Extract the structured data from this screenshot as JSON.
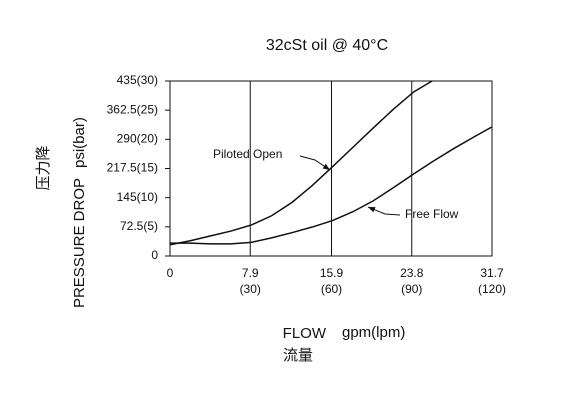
{
  "chart_data": {
    "type": "line",
    "title": "32cSt oil @ 40°C",
    "x_label": "FLOW",
    "x_unit": "gpm(lpm)",
    "x_label_cn": "流量",
    "y_label": "PRESSURE DROP",
    "y_unit": "psi(bar)",
    "y_label_cn": "压力降",
    "xlim": [
      0,
      31.7
    ],
    "ylim": [
      0,
      435
    ],
    "xticks": [
      0,
      {
        "value": 7.9,
        "label": "7.9\n(30)"
      },
      {
        "value": 15.9,
        "label": "15.9\n(60)"
      },
      {
        "value": 23.8,
        "label": "23.8\n(90)"
      },
      {
        "value": 31.7,
        "label": "31.7\n(120)"
      }
    ],
    "yticks": [
      0,
      {
        "value": 72.5,
        "label": "72.5(5)"
      },
      {
        "value": 145,
        "label": "145(10)"
      },
      {
        "value": 217.5,
        "label": "217.5(15)"
      },
      {
        "value": 290,
        "label": "290(20)"
      },
      {
        "value": 362.5,
        "label": "362.5(25)"
      },
      {
        "value": 435,
        "label": "435(30)"
      }
    ],
    "grid": "x",
    "series": [
      {
        "name": "Piloted Open",
        "color": "#111111",
        "x": [
          0,
          2,
          4,
          6,
          8,
          10,
          12,
          14,
          16,
          18,
          20,
          22,
          24,
          25.8
        ],
        "values": [
          28,
          38,
          50,
          62,
          77,
          100,
          133,
          175,
          222,
          270,
          318,
          365,
          408,
          435
        ]
      },
      {
        "name": "Free Flow",
        "color": "#111111",
        "x": [
          0,
          2,
          4,
          6,
          8,
          10,
          12,
          14,
          16,
          18,
          20,
          22,
          24,
          26,
          28,
          30,
          31.7
        ],
        "values": [
          32,
          32,
          30,
          30,
          34,
          45,
          58,
          72,
          88,
          110,
          137,
          170,
          204,
          237,
          268,
          297,
          321
        ]
      }
    ]
  }
}
